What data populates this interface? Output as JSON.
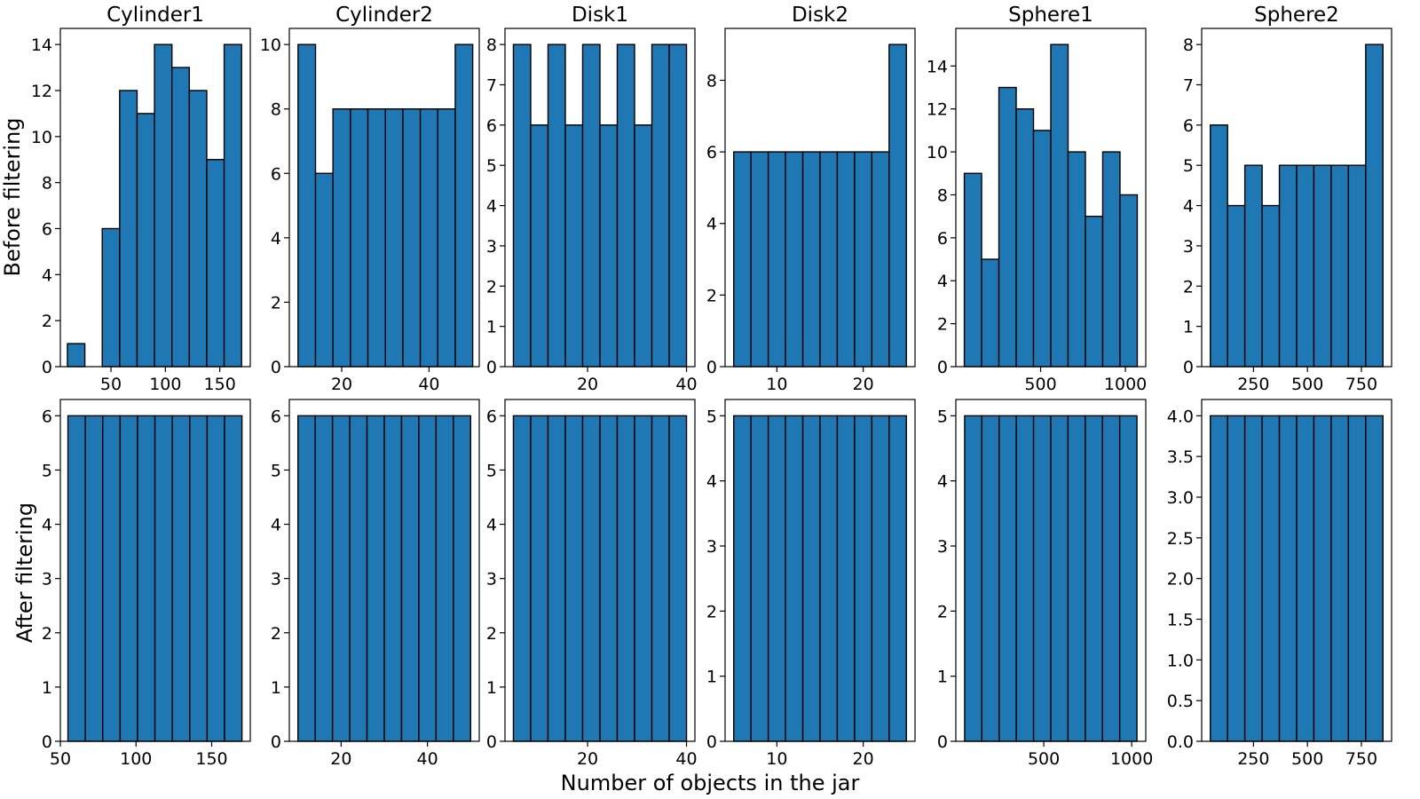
{
  "figure": {
    "row_labels": [
      "Before filtering",
      "After filtering"
    ],
    "xlabel": "Number of objects in the jar",
    "colors": {
      "bar_fill": "#1f77b4",
      "bar_edge": "#000000",
      "axes_edge": "#000000",
      "background": "#ffffff"
    }
  },
  "chart_data": [
    {
      "type": "bar",
      "title": "Cylinder1",
      "row_label": "Before filtering",
      "bin_edges": [
        10,
        26,
        42,
        58,
        74,
        90,
        106,
        122,
        138,
        154,
        170
      ],
      "values": [
        1,
        0,
        6,
        12,
        11,
        14,
        13,
        12,
        9,
        14
      ],
      "xlim": [
        3.5,
        178
      ],
      "xticks": [
        50,
        100,
        150
      ],
      "ylim": [
        0,
        14.7
      ],
      "yticks": [
        0,
        2,
        4,
        6,
        8,
        10,
        12,
        14
      ]
    },
    {
      "type": "bar",
      "title": "Cylinder2",
      "row_label": "Before filtering",
      "bin_edges": [
        10,
        14,
        18,
        22,
        26,
        30,
        34,
        38,
        42,
        46,
        50
      ],
      "values": [
        10,
        6,
        8,
        8,
        8,
        8,
        8,
        8,
        8,
        10
      ],
      "xlim": [
        8,
        51.5
      ],
      "xticks": [
        20,
        40
      ],
      "ylim": [
        0,
        10.5
      ],
      "yticks": [
        0,
        2,
        4,
        6,
        8,
        10
      ]
    },
    {
      "type": "bar",
      "title": "Disk1",
      "row_label": "Before filtering",
      "bin_edges": [
        5,
        8.5,
        12,
        15.5,
        19,
        22.5,
        26,
        29.5,
        33,
        36.5,
        40
      ],
      "values": [
        8,
        6,
        8,
        6,
        8,
        6,
        8,
        6,
        8,
        8
      ],
      "xlim": [
        3.3,
        41.7
      ],
      "xticks": [
        20,
        40
      ],
      "ylim": [
        0,
        8.4
      ],
      "yticks": [
        0,
        1,
        2,
        3,
        4,
        5,
        6,
        7,
        8
      ]
    },
    {
      "type": "bar",
      "title": "Disk2",
      "row_label": "Before filtering",
      "bin_edges": [
        5,
        7,
        9,
        11,
        13,
        15,
        17,
        19,
        21,
        23,
        25
      ],
      "values": [
        6,
        6,
        6,
        6,
        6,
        6,
        6,
        6,
        6,
        9
      ],
      "xlim": [
        4,
        26
      ],
      "xticks": [
        10,
        20
      ],
      "ylim": [
        0,
        9.45
      ],
      "yticks": [
        0,
        2,
        4,
        6,
        8
      ]
    },
    {
      "type": "bar",
      "title": "Sphere1",
      "row_label": "Before filtering",
      "bin_edges": [
        50,
        152,
        254,
        356,
        458,
        560,
        662,
        764,
        866,
        968,
        1070
      ],
      "values": [
        9,
        5,
        13,
        12,
        11,
        15,
        10,
        7,
        10,
        8
      ],
      "xlim": [
        0,
        1120
      ],
      "xticks": [
        500,
        1000
      ],
      "ylim": [
        0,
        15.75
      ],
      "yticks": [
        0,
        2,
        4,
        6,
        8,
        10,
        12,
        14
      ]
    },
    {
      "type": "bar",
      "title": "Sphere2",
      "row_label": "Before filtering",
      "bin_edges": [
        50,
        130,
        210,
        290,
        370,
        450,
        530,
        610,
        690,
        770,
        850
      ],
      "values": [
        6,
        4,
        5,
        4,
        5,
        5,
        5,
        5,
        5,
        8
      ],
      "xlim": [
        10,
        890
      ],
      "xticks": [
        250,
        500,
        750
      ],
      "ylim": [
        0,
        8.4
      ],
      "yticks": [
        0,
        1,
        2,
        3,
        4,
        5,
        6,
        7,
        8
      ]
    },
    {
      "type": "bar",
      "title": "",
      "row_label": "After filtering",
      "bin_edges": [
        55,
        66.5,
        78,
        89.5,
        101,
        112.5,
        124,
        135.5,
        147,
        158.5,
        170
      ],
      "values": [
        6,
        6,
        6,
        6,
        6,
        6,
        6,
        6,
        6,
        6
      ],
      "xlim": [
        50,
        175.5
      ],
      "xticks": [
        50,
        100,
        150
      ],
      "ylim": [
        0,
        6.3
      ],
      "yticks": [
        0,
        1,
        2,
        3,
        4,
        5,
        6
      ]
    },
    {
      "type": "bar",
      "title": "",
      "row_label": "After filtering",
      "bin_edges": [
        10,
        14,
        18,
        22,
        26,
        30,
        34,
        38,
        42,
        46,
        50
      ],
      "values": [
        6,
        6,
        6,
        6,
        6,
        6,
        6,
        6,
        6,
        6
      ],
      "xlim": [
        8,
        52
      ],
      "xticks": [
        20,
        40
      ],
      "ylim": [
        0,
        6.3
      ],
      "yticks": [
        0,
        1,
        2,
        3,
        4,
        5,
        6
      ]
    },
    {
      "type": "bar",
      "title": "",
      "row_label": "After filtering",
      "bin_edges": [
        5,
        8.5,
        12,
        15.5,
        19,
        22.5,
        26,
        29.5,
        33,
        36.5,
        40
      ],
      "values": [
        6,
        6,
        6,
        6,
        6,
        6,
        6,
        6,
        6,
        6
      ],
      "xlim": [
        3.3,
        41.7
      ],
      "xticks": [
        20,
        40
      ],
      "ylim": [
        0,
        6.3
      ],
      "yticks": [
        0,
        1,
        2,
        3,
        4,
        5,
        6
      ]
    },
    {
      "type": "bar",
      "title": "",
      "row_label": "After filtering",
      "bin_edges": [
        5,
        7,
        9,
        11,
        13,
        15,
        17,
        19,
        21,
        23,
        25
      ],
      "values": [
        5,
        5,
        5,
        5,
        5,
        5,
        5,
        5,
        5,
        5
      ],
      "xlim": [
        4,
        26
      ],
      "xticks": [
        10,
        20
      ],
      "ylim": [
        0,
        5.25
      ],
      "yticks": [
        0,
        1,
        2,
        3,
        4,
        5
      ]
    },
    {
      "type": "bar",
      "title": "",
      "row_label": "After filtering",
      "bin_edges": [
        50,
        148,
        246,
        344,
        442,
        540,
        638,
        736,
        834,
        932,
        1030
      ],
      "values": [
        5,
        5,
        5,
        5,
        5,
        5,
        5,
        5,
        5,
        5
      ],
      "xlim": [
        0,
        1080
      ],
      "xticks": [
        500,
        1000
      ],
      "ylim": [
        0,
        5.25
      ],
      "yticks": [
        0,
        1,
        2,
        3,
        4,
        5
      ]
    },
    {
      "type": "bar",
      "title": "",
      "row_label": "After filtering",
      "bin_edges": [
        50,
        130,
        210,
        290,
        370,
        450,
        530,
        610,
        690,
        770,
        850
      ],
      "values": [
        4,
        4,
        4,
        4,
        4,
        4,
        4,
        4,
        4,
        4
      ],
      "xlim": [
        10,
        890
      ],
      "xticks": [
        250,
        500,
        750
      ],
      "ylim": [
        0,
        4.2
      ],
      "yticks": [
        0,
        0.5,
        1,
        1.5,
        2,
        2.5,
        3,
        3.5,
        4
      ],
      "ytick_labels": [
        "0.0",
        "0.5",
        "1.0",
        "1.5",
        "2.0",
        "2.5",
        "3.0",
        "3.5",
        "4.0"
      ]
    }
  ]
}
